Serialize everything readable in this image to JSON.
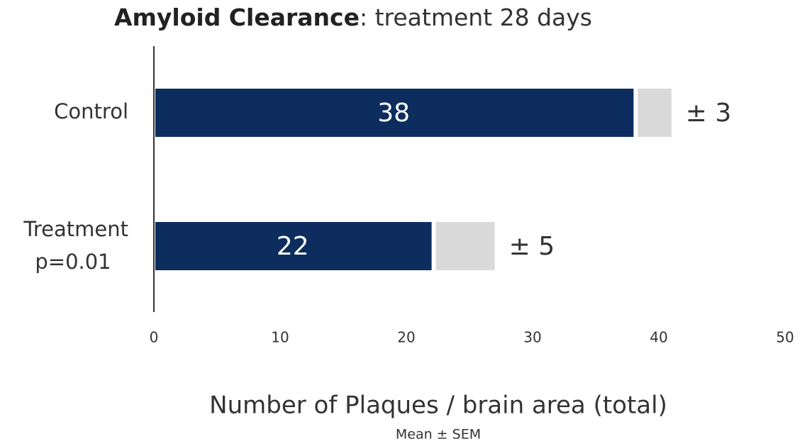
{
  "chart_data": {
    "type": "bar",
    "orientation": "horizontal",
    "title": "Amyloid Clearance",
    "title_suffix": ": treatment 28 days",
    "categories": [
      "Control",
      "Treatment"
    ],
    "annotation": "p=0.01",
    "values": [
      38,
      22
    ],
    "errors": [
      3,
      5
    ],
    "error_labels": [
      "± 3",
      "± 5"
    ],
    "color": "#0c2d5e",
    "error_color": "#d9d9d9",
    "xlim": [
      0,
      50
    ],
    "xticks": [
      0,
      10,
      20,
      30,
      40,
      50
    ],
    "xlabel": "Number of Plaques / brain area (total)",
    "xlabel_note": "Mean ± SEM",
    "grid": false
  }
}
